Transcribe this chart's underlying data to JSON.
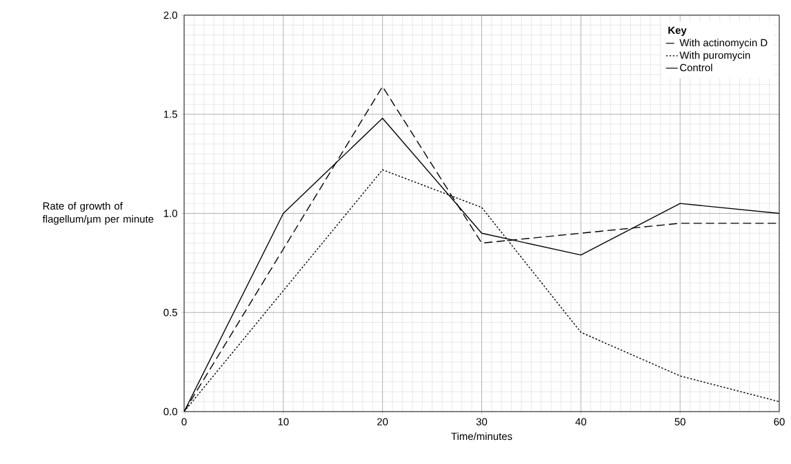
{
  "chart_data": {
    "type": "line",
    "xlabel": "Time/minutes",
    "ylabel": "Rate of growth of flagellum/µm per minute",
    "legend_title": "Key",
    "legend": "top right",
    "grid": true,
    "marker": "none",
    "x": [
      0,
      10,
      20,
      30,
      40,
      50,
      60
    ],
    "xlim": [
      0,
      60
    ],
    "xticks": [
      0,
      10,
      20,
      30,
      40,
      50,
      60
    ],
    "ylim": [
      0,
      2.0
    ],
    "yticks": [
      {
        "value": 0,
        "label": "0.0"
      },
      {
        "value": 0.5,
        "label": "0.5"
      },
      {
        "value": 1.0,
        "label": "1.0"
      },
      {
        "value": 1.5,
        "label": "1.5"
      },
      {
        "value": 2.0,
        "label": "2.0"
      }
    ],
    "series": [
      {
        "name": "With actinomycin D",
        "color": "#000000",
        "line_style": "dashed",
        "values": [
          0,
          0.82,
          1.64,
          0.85,
          0.9,
          0.95,
          0.95
        ]
      },
      {
        "name": "With puromycin",
        "color": "#000000",
        "line_style": "dotted",
        "values": [
          0,
          0.61,
          1.22,
          1.03,
          0.4,
          0.18,
          0.05
        ]
      },
      {
        "name": "Control",
        "color": "#000000",
        "line_style": "solid",
        "values": [
          0,
          1.0,
          1.48,
          0.9,
          0.79,
          1.05,
          1.0
        ]
      }
    ]
  }
}
